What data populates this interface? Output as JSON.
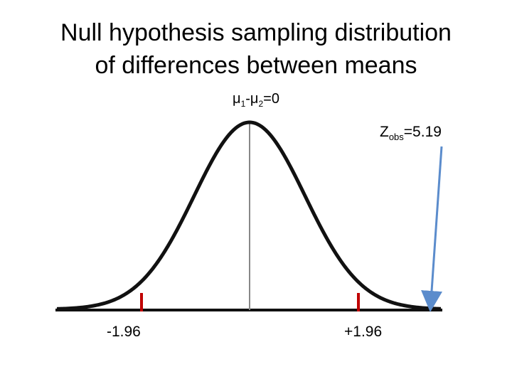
{
  "title": {
    "line1": "Null hypothesis sampling distribution",
    "line2": "of differences between means"
  },
  "mean_label": {
    "mu": "μ",
    "sub1": "1",
    "minus": "-μ",
    "sub2": "2",
    "value": "=0"
  },
  "zobs_label": {
    "z": "Z",
    "sub": "obs",
    "value": "=5.19"
  },
  "critical_values": {
    "left": "-1.96",
    "right": "+1.96"
  },
  "colors": {
    "curve": "#111111",
    "critical_markers": "#c00000",
    "arrow": "#5b8ccc",
    "center_line": "#888888"
  }
}
